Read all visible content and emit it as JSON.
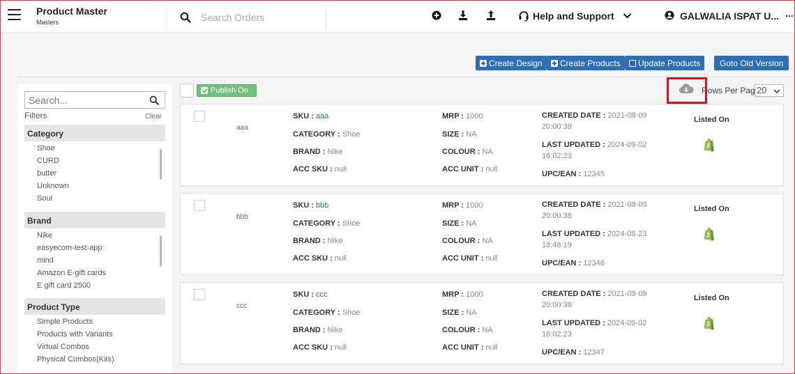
{
  "header": {
    "title": "Product Master",
    "subtitle": "Masters",
    "search_placeholder": "Search Orders",
    "help_label": "Help and Support",
    "account_name": "GALWALIA ISPAT U...",
    "more_label": "..."
  },
  "toolbar": {
    "create_design": "Create Design",
    "create_products": "Create Products",
    "update_products": "Update Products",
    "old_version": "Goto Old Version"
  },
  "sidebar": {
    "search_placeholder": "Search...",
    "filters_label": "Filters",
    "clear_label": "Clear",
    "groups": [
      {
        "title": "Category",
        "items": [
          "Shoe",
          "CURD",
          "butter",
          "Unknown",
          "Soul"
        ]
      },
      {
        "title": "Brand",
        "items": [
          "Nike",
          "easyecom-test-app",
          "mind",
          "Amazon E-gift cards",
          "E gift card 2500"
        ]
      },
      {
        "title": "Product Type",
        "items": [
          "Simple Products",
          "Products with Variants",
          "Virtual Combos",
          "Physical Combos(Kits)"
        ]
      }
    ]
  },
  "list": {
    "publish_label": "Publish On",
    "rows_label": "Rows Per Page",
    "rows_value": "20",
    "field_labels": {
      "sku": "SKU :",
      "category": "CATEGORY :",
      "brand": "BRAND :",
      "acc_sku": "ACC SKU :",
      "mrp": "MRP :",
      "size": "SIZE :",
      "colour": "COLOUR :",
      "acc_unit": "ACC UNIT :",
      "created": "CREATED DATE :",
      "updated": "LAST UPDATED :",
      "upc": "UPC/EAN :",
      "listed_on": "Listed On"
    },
    "products": [
      {
        "thumb": "aaa",
        "sku": "aaa",
        "category": "Shoe",
        "brand": "Nike",
        "acc_sku": "null",
        "mrp": "1000",
        "size": "NA",
        "colour": "NA",
        "acc_unit": "null",
        "created": "2021-08-09 20:00:38",
        "updated": "2024-09-02 16:02:23",
        "upc": "12345"
      },
      {
        "thumb": "bbb",
        "sku": "bbb",
        "category": "Shoe",
        "brand": "Nike",
        "acc_sku": "null",
        "mrp": "1000",
        "size": "NA",
        "colour": "NA",
        "acc_unit": "null",
        "created": "2021-08-09 20:00:38",
        "updated": "2024-08-23 18:48:19",
        "upc": "12346"
      },
      {
        "thumb": "ccc",
        "sku": "ccc",
        "category": "Shoe",
        "brand": "Nike",
        "acc_sku": "null",
        "mrp": "1000",
        "size": "NA",
        "colour": "NA",
        "acc_unit": "null",
        "created": "2021-08-09 20:00:38",
        "updated": "2024-09-02 16:02:23",
        "upc": "12347"
      }
    ]
  },
  "colors": {
    "primary_button": "#2c6fb8",
    "publish_button": "#6fc17a",
    "highlight_box": "#e0101a",
    "shopify_green": "#95bf47"
  },
  "icons": [
    "menu-icon",
    "search-icon",
    "plus-circle-icon",
    "download-icon",
    "upload-icon",
    "headset-icon",
    "chevron-down-icon",
    "user-icon",
    "cloud-download-icon",
    "shopify-icon"
  ]
}
